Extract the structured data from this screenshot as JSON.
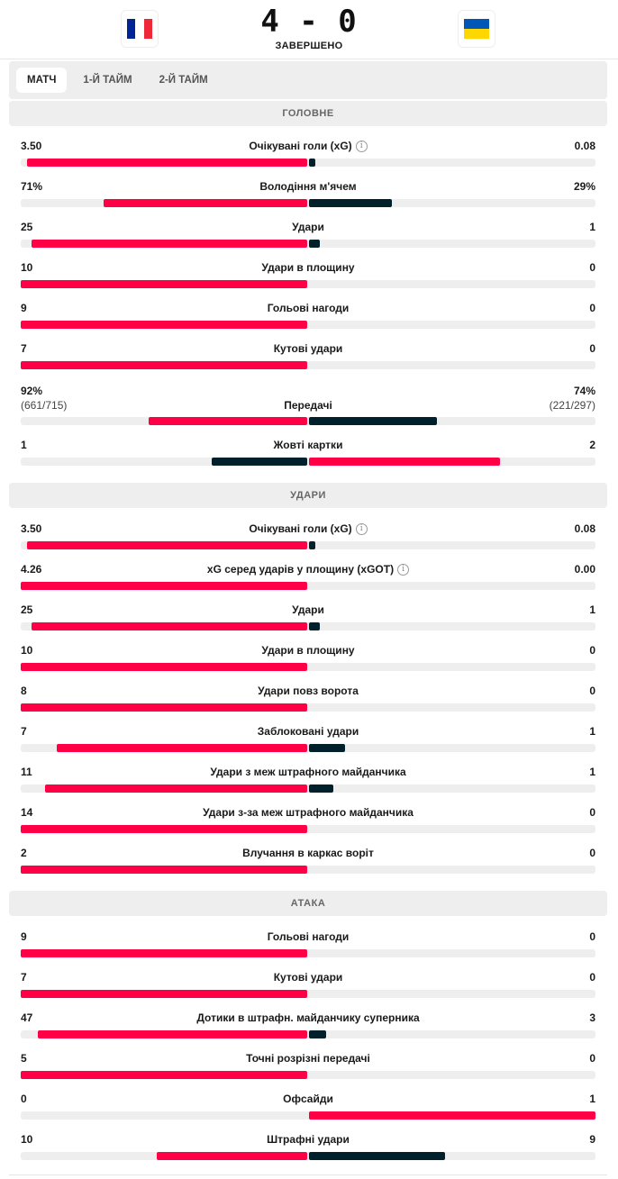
{
  "match": {
    "home_flag": "france-flag",
    "away_flag": "ukraine-flag",
    "score": "4 - 0",
    "status": "ЗАВЕРШЕНО"
  },
  "tabs": [
    {
      "label": "МАТЧ",
      "active": true
    },
    {
      "label": "1-Й ТАЙМ"
    },
    {
      "label": "2-Й ТАЙМ"
    }
  ],
  "colors": {
    "accent": "#ff0046",
    "dark": "#00202b",
    "track": "#eeeeee"
  },
  "sections": [
    {
      "title": "ГОЛОВНЕ",
      "rows": [
        {
          "label": "Очікувані голи (xG)",
          "home": "3.50",
          "away": "0.08",
          "hv": 3.5,
          "av": 0.08,
          "info": true
        },
        {
          "label": "Володіння м'ячем",
          "home": "71%",
          "away": "29%",
          "hv": 71,
          "av": 29
        },
        {
          "label": "Удари",
          "home": "25",
          "away": "1",
          "hv": 25,
          "av": 1
        },
        {
          "label": "Удари в площину",
          "home": "10",
          "away": "0",
          "hv": 10,
          "av": 0
        },
        {
          "label": "Гольові нагоди",
          "home": "9",
          "away": "0",
          "hv": 9,
          "av": 0
        },
        {
          "label": "Кутові удари",
          "home": "7",
          "away": "0",
          "hv": 7,
          "av": 0
        },
        {
          "label": "Передачі",
          "home": "92%",
          "away": "74%",
          "home_sub": "(661/715)",
          "away_sub": "(221/297)",
          "hv": 92,
          "av": 74
        },
        {
          "label": "Жовті картки",
          "home": "1",
          "away": "2",
          "hv": 1,
          "av": 2
        }
      ]
    },
    {
      "title": "УДАРИ",
      "rows": [
        {
          "label": "Очікувані голи (xG)",
          "home": "3.50",
          "away": "0.08",
          "hv": 3.5,
          "av": 0.08,
          "info": true
        },
        {
          "label": "xG серед ударів у площину (xGOT)",
          "home": "4.26",
          "away": "0.00",
          "hv": 4.26,
          "av": 0,
          "info": true
        },
        {
          "label": "Удари",
          "home": "25",
          "away": "1",
          "hv": 25,
          "av": 1
        },
        {
          "label": "Удари в площину",
          "home": "10",
          "away": "0",
          "hv": 10,
          "av": 0
        },
        {
          "label": "Удари повз ворота",
          "home": "8",
          "away": "0",
          "hv": 8,
          "av": 0
        },
        {
          "label": "Заблоковані удари",
          "home": "7",
          "away": "1",
          "hv": 7,
          "av": 1
        },
        {
          "label": "Удари з меж штрафного майданчика",
          "home": "11",
          "away": "1",
          "hv": 11,
          "av": 1
        },
        {
          "label": "Удари з-за меж штрафного майданчика",
          "home": "14",
          "away": "0",
          "hv": 14,
          "av": 0
        },
        {
          "label": "Влучання в каркас воріт",
          "home": "2",
          "away": "0",
          "hv": 2,
          "av": 0
        }
      ]
    },
    {
      "title": "АТАКА",
      "rows": [
        {
          "label": "Гольові нагоди",
          "home": "9",
          "away": "0",
          "hv": 9,
          "av": 0
        },
        {
          "label": "Кутові удари",
          "home": "7",
          "away": "0",
          "hv": 7,
          "av": 0
        },
        {
          "label": "Дотики в штрафн. майданчику суперника",
          "home": "47",
          "away": "3",
          "hv": 47,
          "av": 3
        },
        {
          "label": "Точні розрізні передачі",
          "home": "5",
          "away": "0",
          "hv": 5,
          "av": 0
        },
        {
          "label": "Офсайди",
          "home": "0",
          "away": "1",
          "hv": 0,
          "av": 1
        },
        {
          "label": "Штрафні удари",
          "home": "10",
          "away": "9",
          "hv": 10,
          "av": 9
        }
      ]
    }
  ]
}
